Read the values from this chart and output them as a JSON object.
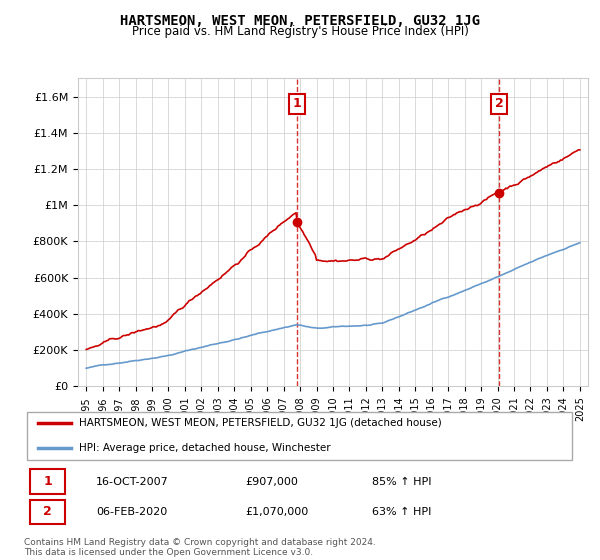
{
  "title": "HARTSMEON, WEST MEON, PETERSFIELD, GU32 1JG",
  "subtitle": "Price paid vs. HM Land Registry's House Price Index (HPI)",
  "legend_line1": "HARTSMEON, WEST MEON, PETERSFIELD, GU32 1JG (detached house)",
  "legend_line2": "HPI: Average price, detached house, Winchester",
  "annotation1_date": "16-OCT-2007",
  "annotation1_price": "£907,000",
  "annotation1_hpi": "85% ↑ HPI",
  "annotation2_date": "06-FEB-2020",
  "annotation2_price": "£1,070,000",
  "annotation2_hpi": "63% ↑ HPI",
  "footer": "Contains HM Land Registry data © Crown copyright and database right 2024.\nThis data is licensed under the Open Government Licence v3.0.",
  "red_color": "#cc0000",
  "blue_color": "#6699cc",
  "annotation_color": "#cc0000",
  "bg_color": "#ffffff",
  "grid_color": "#cccccc",
  "ylim": [
    0,
    1700000
  ],
  "yticks": [
    0,
    200000,
    400000,
    600000,
    800000,
    1000000,
    1200000,
    1400000,
    1600000
  ],
  "ytick_labels": [
    "£0",
    "£200K",
    "£400K",
    "£600K",
    "£800K",
    "£1M",
    "£1.2M",
    "£1.4M",
    "£1.6M"
  ],
  "vline1_year": 2007.8,
  "vline2_year": 2020.1,
  "sale1_year": 2007.8,
  "sale1_price": 907000,
  "sale2_year": 2020.1,
  "sale2_price": 1070000
}
